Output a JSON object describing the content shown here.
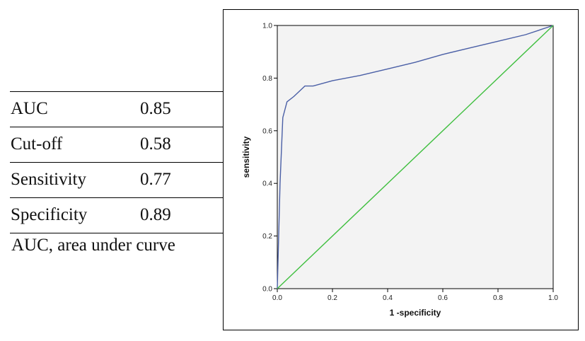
{
  "stats": [
    {
      "label": "AUC",
      "value": "0.85"
    },
    {
      "label": "Cut-off",
      "value": "0.58"
    },
    {
      "label": "Sensitivity",
      "value": "0.77"
    },
    {
      "label": "Specificity",
      "value": "0.89"
    }
  ],
  "footnote": "AUC, area under curve",
  "chart_data": {
    "type": "line",
    "xlabel": "1 -specificity",
    "ylabel": "sensitivity",
    "xlim": [
      0,
      1
    ],
    "ylim": [
      0,
      1
    ],
    "x_ticks": [
      "0.0",
      "0.2",
      "0.4",
      "0.6",
      "0.8",
      "1.0"
    ],
    "y_ticks": [
      "0.0",
      "0.2",
      "0.4",
      "0.6",
      "0.8",
      "1.0"
    ],
    "grid": false,
    "legend": "none",
    "plot_background": "#f3f3f3",
    "series": [
      {
        "color": "#4a5fa6",
        "x": [
          0.0,
          0.01,
          0.02,
          0.035,
          0.06,
          0.1,
          0.13,
          0.2,
          0.3,
          0.4,
          0.5,
          0.6,
          0.7,
          0.8,
          0.9,
          1.0
        ],
        "y": [
          0.0,
          0.4,
          0.65,
          0.71,
          0.73,
          0.77,
          0.77,
          0.79,
          0.81,
          0.835,
          0.86,
          0.89,
          0.915,
          0.94,
          0.965,
          1.0
        ]
      },
      {
        "color": "#3fbf3f",
        "x": [
          0.0,
          1.0
        ],
        "y": [
          0.0,
          1.0
        ]
      }
    ]
  }
}
